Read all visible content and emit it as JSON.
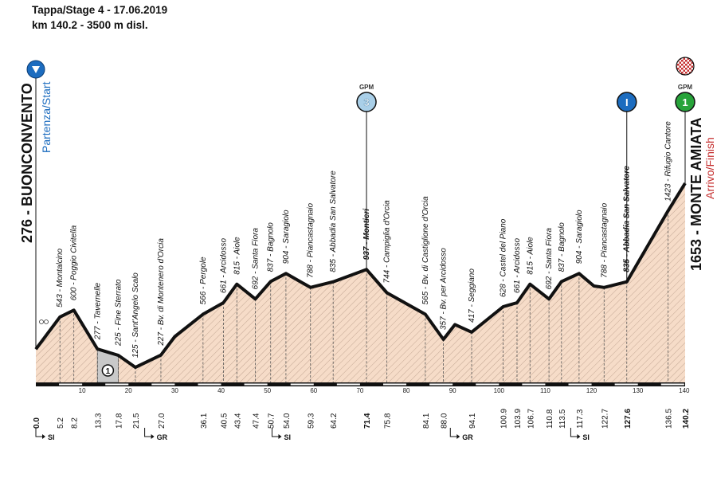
{
  "header": {
    "title": "Tappa/Stage 4 - 17.06.2019",
    "subtitle": "km 140.2 - 3500 m disl."
  },
  "start": {
    "label": "276 - BUONCONVENTO",
    "sublabel": "Partenza/Start",
    "icon": "start-arrow-icon"
  },
  "finish": {
    "label": "1653 - MONTE AMIATA",
    "sublabel": "Arrivo/Finish",
    "icon": "checkered-flag-icon"
  },
  "colors": {
    "fill": "#f6dcc8",
    "hatch": "#c2a693",
    "line": "#111111",
    "blue": "#1c6cbf",
    "kom3": "#a9cfe8",
    "kom1": "#27a33a",
    "gravel": "#c9c9c9",
    "red": "#c52e2e"
  },
  "chart_data": {
    "type": "area",
    "title": "Tappa/Stage 4 - 17.06.2019",
    "subtitle": "km 140.2 - 3500 m disl.",
    "xlabel": "",
    "ylabel": "",
    "xlim": [
      0,
      140.2
    ],
    "ylim": [
      0,
      1800
    ],
    "grid": false,
    "x_ticks": [
      10,
      20,
      30,
      40,
      50,
      60,
      70,
      80,
      90,
      100,
      110,
      120,
      130,
      140
    ],
    "profile": [
      [
        0,
        276
      ],
      [
        5.2,
        543
      ],
      [
        8.2,
        600
      ],
      [
        13.3,
        277
      ],
      [
        17.8,
        225
      ],
      [
        21.5,
        125
      ],
      [
        27.0,
        227
      ],
      [
        30,
        380
      ],
      [
        36.1,
        566
      ],
      [
        40.5,
        661
      ],
      [
        43.4,
        815
      ],
      [
        47.4,
        692
      ],
      [
        50.7,
        837
      ],
      [
        54.0,
        904
      ],
      [
        59.3,
        788
      ],
      [
        64.2,
        835
      ],
      [
        71.4,
        937
      ],
      [
        75.8,
        744
      ],
      [
        84.1,
        565
      ],
      [
        88.0,
        357
      ],
      [
        90.5,
        480
      ],
      [
        94.1,
        417
      ],
      [
        100.9,
        628
      ],
      [
        103.9,
        661
      ],
      [
        106.7,
        815
      ],
      [
        110.8,
        692
      ],
      [
        113.5,
        837
      ],
      [
        117.3,
        904
      ],
      [
        120.5,
        800
      ],
      [
        122.7,
        788
      ],
      [
        127.6,
        835
      ],
      [
        136.5,
        1423
      ],
      [
        140.2,
        1653
      ]
    ],
    "places": [
      {
        "km": 0.0,
        "text": "",
        "km_label": "0.0",
        "bold": true
      },
      {
        "km": 5.2,
        "text": "543 - Montalcino",
        "km_label": "5.2",
        "bold": false
      },
      {
        "km": 8.2,
        "text": "600 - Poggio Civitella",
        "km_label": "8.2",
        "bold": false
      },
      {
        "km": 13.3,
        "text": "277 - Tavernelle",
        "km_label": "13.3",
        "bold": false
      },
      {
        "km": 17.8,
        "text": "225 - Fine Sterrato",
        "km_label": "17.8",
        "bold": false
      },
      {
        "km": 21.5,
        "text": "125 - Sant'Angelo Scalo",
        "km_label": "21.5",
        "bold": false
      },
      {
        "km": 27.0,
        "text": "227 - Bv. di Montenero d'Orcia",
        "km_label": "27.0",
        "bold": false
      },
      {
        "km": 36.1,
        "text": "566 - Pergole",
        "km_label": "36.1",
        "bold": false
      },
      {
        "km": 40.5,
        "text": "661 - Arcidosso",
        "km_label": "40.5",
        "bold": false
      },
      {
        "km": 43.4,
        "text": "815 - Aiole",
        "km_label": "43.4",
        "bold": false
      },
      {
        "km": 47.4,
        "text": "692 - Santa Fiora",
        "km_label": "47.4",
        "bold": false
      },
      {
        "km": 50.7,
        "text": "837 - Bagnolo",
        "km_label": "50.7",
        "bold": false
      },
      {
        "km": 54.0,
        "text": "904 - Saragiolo",
        "km_label": "54.0",
        "bold": false
      },
      {
        "km": 59.3,
        "text": "788 - Piancastagnaio",
        "km_label": "59.3",
        "bold": false
      },
      {
        "km": 64.2,
        "text": "835 - Abbadia San Salvatore",
        "km_label": "64.2",
        "bold": false
      },
      {
        "km": 71.4,
        "text": "937 - Montieri",
        "km_label": "71.4",
        "bold": true
      },
      {
        "km": 75.8,
        "text": "744 - Campiglia d'Orcia",
        "km_label": "75.8",
        "bold": false
      },
      {
        "km": 84.1,
        "text": "565 - Bv. di Castiglione d'Orcia",
        "km_label": "84.1",
        "bold": false
      },
      {
        "km": 88.0,
        "text": "357 - Bv. per Arcidosso",
        "km_label": "88.0",
        "bold": false
      },
      {
        "km": 94.1,
        "text": "417 - Seggiano",
        "km_label": "94.1",
        "bold": false
      },
      {
        "km": 100.9,
        "text": "628 - Castel del Piano",
        "km_label": "100.9",
        "bold": false
      },
      {
        "km": 103.9,
        "text": "661 - Arcidosso",
        "km_label": "103.9",
        "bold": false
      },
      {
        "km": 106.7,
        "text": "815 - Aiole",
        "km_label": "106.7",
        "bold": false
      },
      {
        "km": 110.8,
        "text": "692 - Santa Fiora",
        "km_label": "110.8",
        "bold": false
      },
      {
        "km": 113.5,
        "text": "837 - Bagnolo",
        "km_label": "113.5",
        "bold": false
      },
      {
        "km": 117.3,
        "text": "904 - Saragiolo",
        "km_label": "117.3",
        "bold": false
      },
      {
        "km": 122.7,
        "text": "788 - Piancastagnaio",
        "km_label": "122.7",
        "bold": false
      },
      {
        "km": 127.6,
        "text": "835 - Abbadia San Salvatore",
        "km_label": "127.6",
        "bold": true
      },
      {
        "km": 136.5,
        "text": "1423 - Rifugio Cantore",
        "km_label": "136.5",
        "bold": false
      },
      {
        "km": 140.2,
        "text": "",
        "km_label": "140.2",
        "bold": true
      }
    ],
    "sprints": [
      {
        "km": 71.4,
        "label": "GPM",
        "category": "3"
      },
      {
        "km": 127.6,
        "label": "",
        "category": "I"
      },
      {
        "km": 140.2,
        "label": "GPM",
        "category": "1"
      }
    ],
    "gravel": [
      {
        "from": 13.3,
        "to": 17.8,
        "label": "1"
      }
    ],
    "turns": [
      {
        "km": 0.0,
        "label": "SI"
      },
      {
        "km": 23.5,
        "label": "GR"
      },
      {
        "km": 51.0,
        "label": "SI"
      },
      {
        "km": 89.5,
        "label": "GR"
      },
      {
        "km": 115.5,
        "label": "SI"
      }
    ]
  }
}
